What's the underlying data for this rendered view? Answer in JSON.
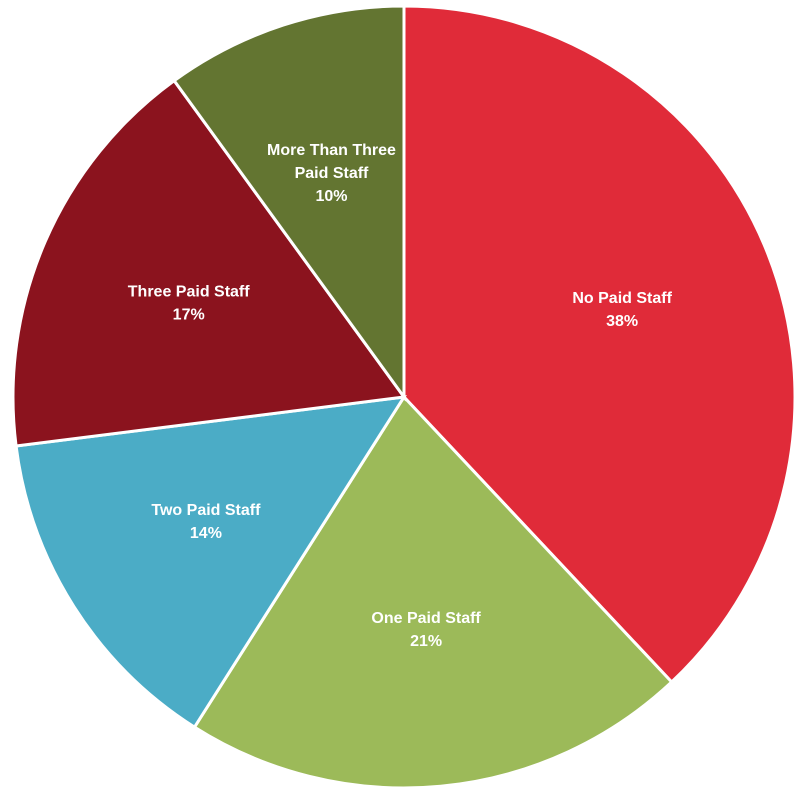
{
  "chart_data": {
    "type": "pie",
    "title": "",
    "legend": "none",
    "start_angle_deg": 0,
    "direction": "clockwise",
    "slices": [
      {
        "label_lines": [
          "No Paid Staff"
        ],
        "value": 38,
        "value_label": "38%",
        "color": "#E02B39"
      },
      {
        "label_lines": [
          "One Paid Staff"
        ],
        "value": 21,
        "value_label": "21%",
        "color": "#9CBA59"
      },
      {
        "label_lines": [
          "Two Paid Staff"
        ],
        "value": 14,
        "value_label": "14%",
        "color": "#4BACC6"
      },
      {
        "label_lines": [
          "Three Paid Staff"
        ],
        "value": 17,
        "value_label": "17%",
        "color": "#8B131E"
      },
      {
        "label_lines": [
          "More Than Three",
          "Paid Staff"
        ],
        "value": 10,
        "value_label": "10%",
        "color": "#637531"
      }
    ]
  }
}
